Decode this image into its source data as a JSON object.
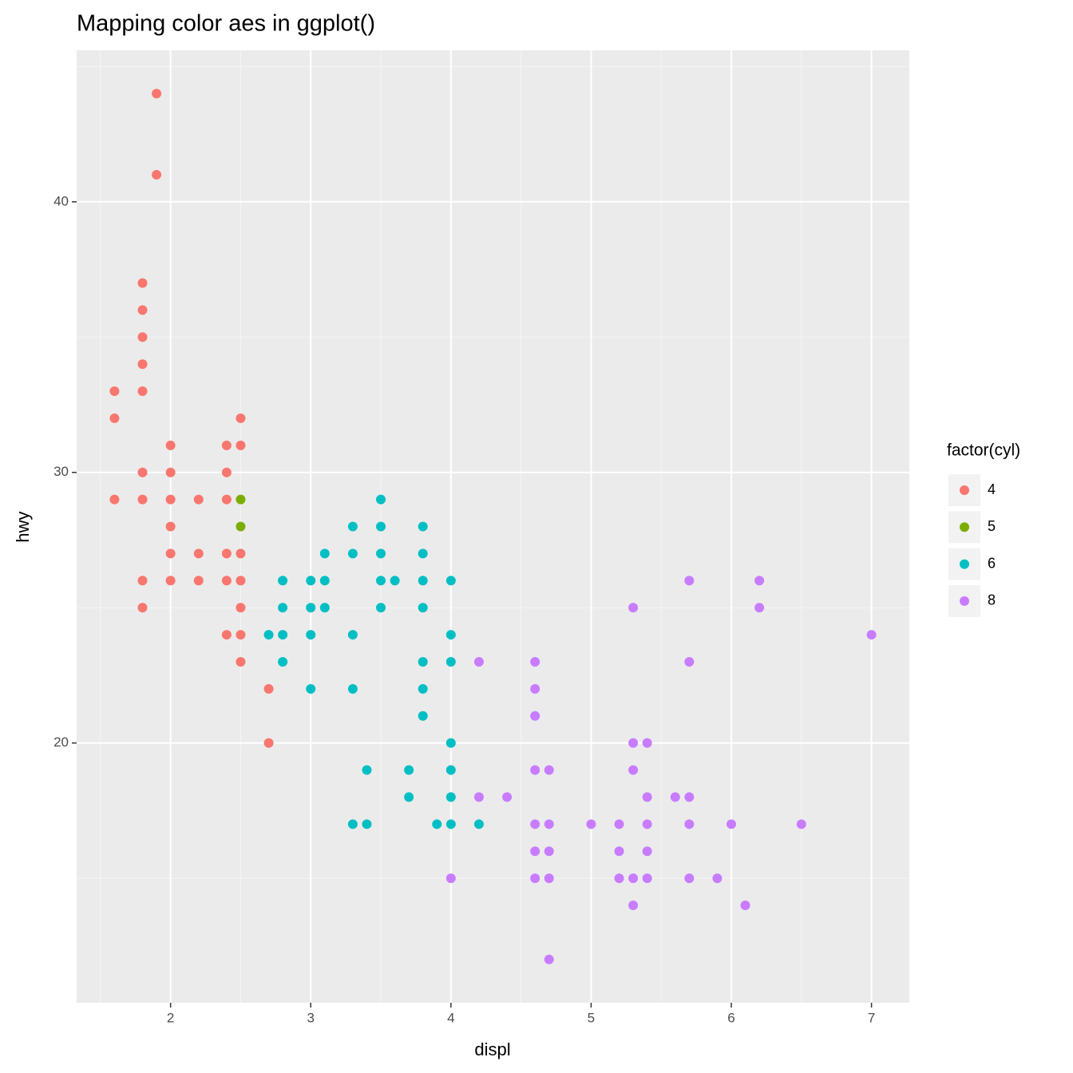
{
  "chart_data": {
    "type": "scatter",
    "title": "Mapping color aes in ggplot()",
    "x_label": "displ",
    "y_label": "hwy",
    "legend_title": "factor(cyl)",
    "xlim": [
      1.33,
      7.27
    ],
    "ylim": [
      10.4,
      45.6
    ],
    "xticks": [
      2,
      3,
      4,
      5,
      6,
      7
    ],
    "yticks": [
      20,
      30,
      40
    ],
    "grid": true,
    "legend": "right",
    "series": [
      {
        "name": "4",
        "color": "#F8766D",
        "x": [
          1.6,
          1.6,
          1.6,
          1.8,
          1.8,
          1.8,
          1.8,
          1.8,
          1.8,
          1.8,
          1.8,
          1.8,
          1.9,
          1.9,
          2.0,
          2.0,
          2.0,
          2.0,
          2.0,
          2.0,
          2.2,
          2.2,
          2.2,
          2.4,
          2.4,
          2.4,
          2.4,
          2.4,
          2.4,
          2.5,
          2.5,
          2.5,
          2.5,
          2.5,
          2.5,
          2.5,
          2.7,
          2.7
        ],
        "values": [
          33,
          32,
          29,
          37,
          36,
          35,
          34,
          33,
          30,
          29,
          26,
          25,
          44,
          41,
          31,
          30,
          29,
          28,
          27,
          26,
          29,
          27,
          26,
          31,
          30,
          29,
          27,
          26,
          24,
          32,
          31,
          27,
          26,
          25,
          24,
          23,
          22,
          20
        ]
      },
      {
        "name": "5",
        "color": "#7CAE00",
        "x": [
          2.5,
          2.5
        ],
        "values": [
          29,
          28
        ]
      },
      {
        "name": "6",
        "color": "#00BFC4",
        "x": [
          2.7,
          2.8,
          2.8,
          2.8,
          2.8,
          3.0,
          3.0,
          3.0,
          3.0,
          3.1,
          3.1,
          3.1,
          3.3,
          3.3,
          3.3,
          3.3,
          3.3,
          3.4,
          3.4,
          3.5,
          3.5,
          3.5,
          3.5,
          3.5,
          3.6,
          3.7,
          3.7,
          3.8,
          3.8,
          3.8,
          3.8,
          3.8,
          3.8,
          3.8,
          3.9,
          4.0,
          4.0,
          4.0,
          4.0,
          4.0,
          4.0,
          4.0,
          4.2
        ],
        "values": [
          24,
          26,
          25,
          24,
          23,
          26,
          25,
          24,
          22,
          27,
          26,
          25,
          28,
          27,
          24,
          22,
          17,
          19,
          17,
          29,
          28,
          27,
          26,
          25,
          26,
          19,
          18,
          28,
          27,
          26,
          25,
          23,
          22,
          21,
          17,
          26,
          24,
          23,
          20,
          19,
          18,
          17,
          17
        ]
      },
      {
        "name": "8",
        "color": "#C77CFF",
        "x": [
          4.0,
          4.2,
          4.2,
          4.4,
          4.6,
          4.6,
          4.6,
          4.6,
          4.6,
          4.6,
          4.6,
          4.7,
          4.7,
          4.7,
          4.7,
          4.7,
          5.0,
          5.2,
          5.2,
          5.2,
          5.3,
          5.3,
          5.3,
          5.3,
          5.3,
          5.4,
          5.4,
          5.4,
          5.4,
          5.4,
          5.6,
          5.7,
          5.7,
          5.7,
          5.7,
          5.7,
          5.9,
          6.0,
          6.1,
          6.2,
          6.2,
          6.5,
          7.0
        ],
        "values": [
          15,
          23,
          18,
          18,
          23,
          22,
          21,
          19,
          17,
          16,
          15,
          19,
          17,
          16,
          15,
          12,
          17,
          17,
          16,
          15,
          25,
          20,
          19,
          15,
          14,
          20,
          18,
          17,
          16,
          15,
          18,
          26,
          23,
          18,
          17,
          15,
          15,
          17,
          14,
          26,
          25,
          17,
          24
        ]
      }
    ]
  }
}
